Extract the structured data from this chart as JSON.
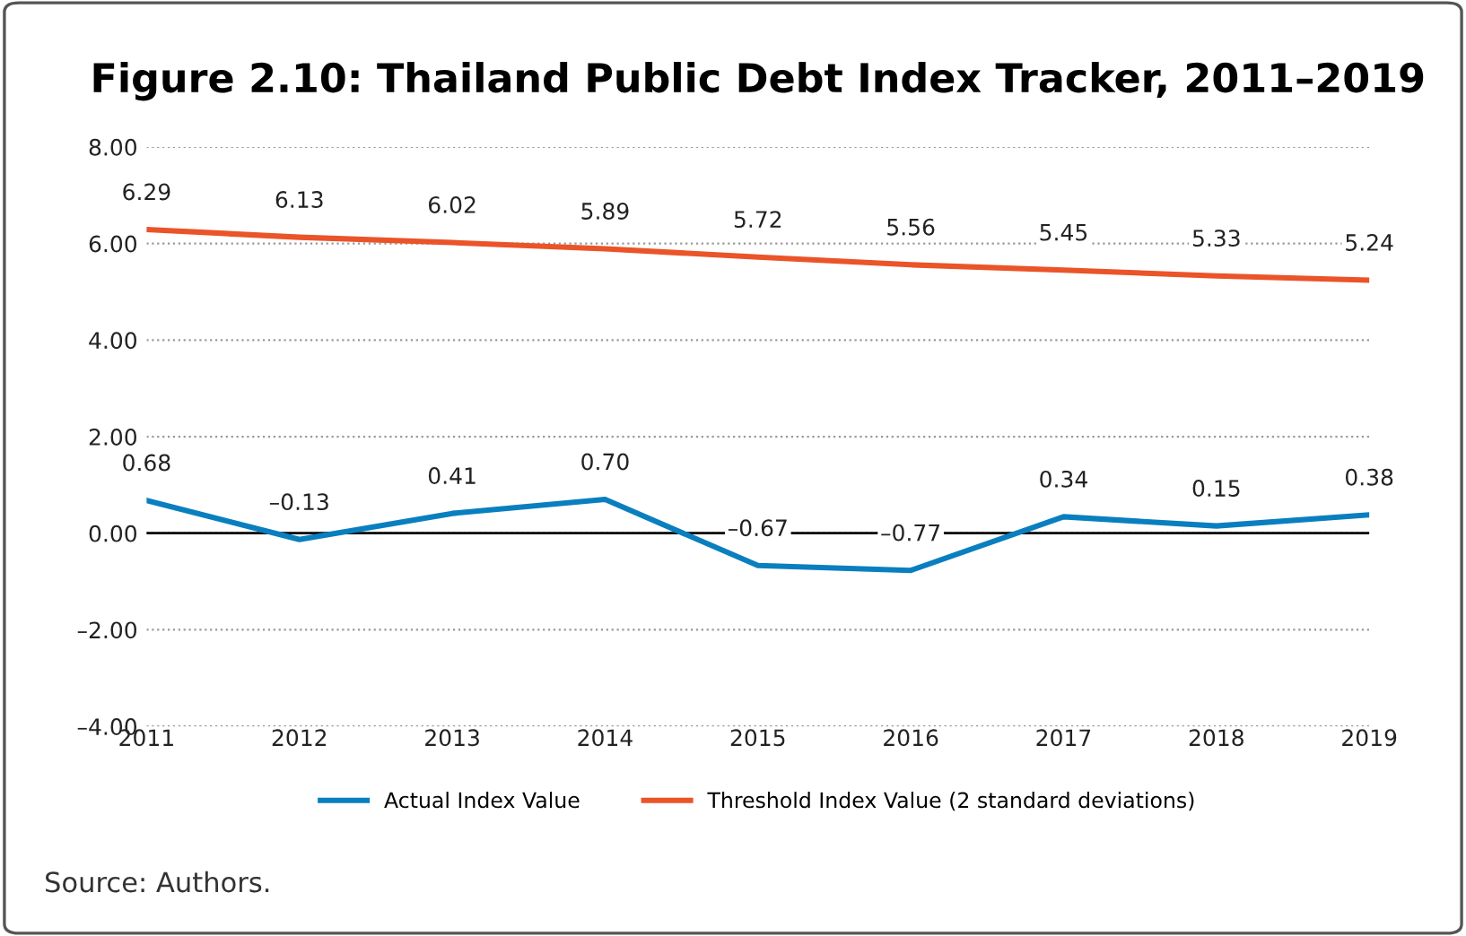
{
  "chart_data": {
    "type": "line",
    "title": "Figure 2.10: Thailand Public Debt Index Tracker, 2011–2019",
    "categories": [
      "2011",
      "2012",
      "2013",
      "2014",
      "2015",
      "2016",
      "2017",
      "2018",
      "2019"
    ],
    "series": [
      {
        "name": "Actual Index Value",
        "color": "#0a7fbf",
        "values": [
          0.68,
          -0.13,
          0.41,
          0.7,
          -0.67,
          -0.77,
          0.34,
          0.15,
          0.38
        ],
        "value_labels": [
          "0.68",
          "–0.13",
          "0.41",
          "0.70",
          "–0.67",
          "–0.77",
          "0.34",
          "0.15",
          "0.38"
        ]
      },
      {
        "name": "Threshold Index Value (2 standard deviations)",
        "color": "#ea5428",
        "values": [
          6.29,
          6.13,
          6.02,
          5.89,
          5.72,
          5.56,
          5.45,
          5.33,
          5.24
        ],
        "value_labels": [
          "6.29",
          "6.13",
          "6.02",
          "5.89",
          "5.72",
          "5.56",
          "5.45",
          "5.33",
          "5.24"
        ]
      }
    ],
    "ylim": [
      -4,
      8
    ],
    "yticks": [
      {
        "value": -4,
        "label": "–4.00"
      },
      {
        "value": -2,
        "label": "–2.00"
      },
      {
        "value": 0,
        "label": "0.00"
      },
      {
        "value": 2,
        "label": "2.00"
      },
      {
        "value": 4,
        "label": "4.00"
      },
      {
        "value": 6,
        "label": "6.00"
      },
      {
        "value": 8,
        "label": "8.00"
      }
    ],
    "ref_lines": [
      {
        "axis": "y",
        "value": 0,
        "color": "#000000",
        "line_style": "solid"
      }
    ],
    "grid": "y",
    "legend": "bottom",
    "marker": "none",
    "line_style": "solid",
    "annotations": [
      "Source: Authors."
    ]
  }
}
